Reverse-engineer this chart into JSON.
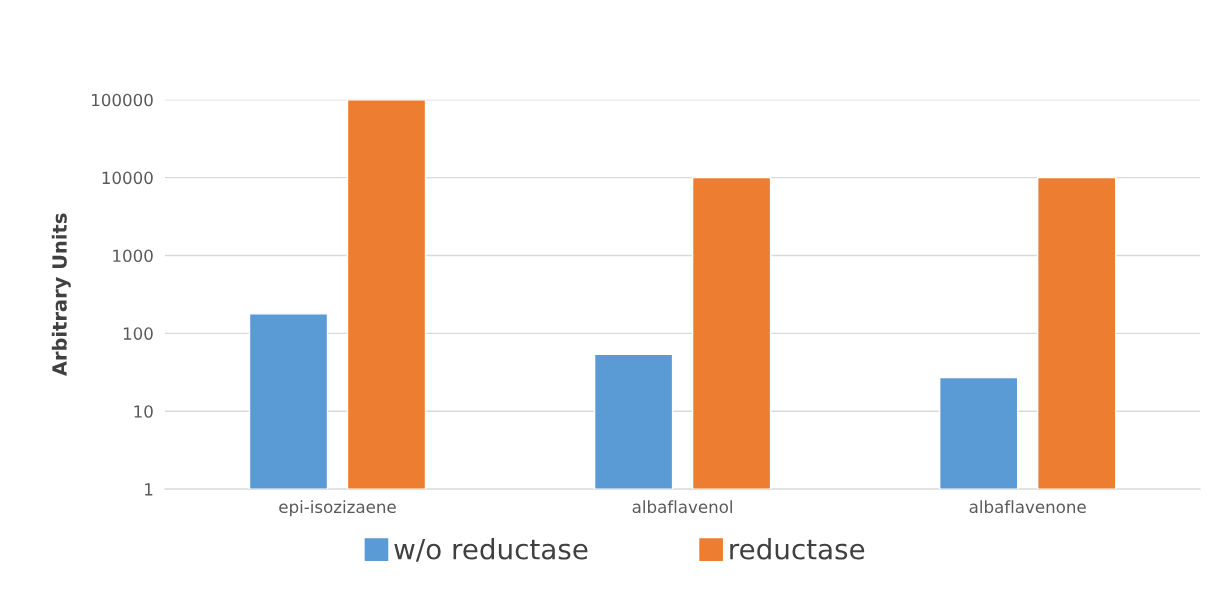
{
  "chart_data": {
    "type": "bar",
    "ylabel": "Arbitrary Units",
    "categories": [
      "epi-isozizaene",
      "albaflavenol",
      "albaflavenone"
    ],
    "series": [
      {
        "name": "w/o reductase",
        "color": "#5b9bd5",
        "values": [
          178,
          54,
          27
        ]
      },
      {
        "name": "reductase",
        "color": "#ed7d31",
        "values": [
          100000,
          10000,
          10000
        ]
      }
    ],
    "log": true,
    "ylim": [
      1,
      100000
    ],
    "yticks": [
      1,
      10,
      100,
      1000,
      10000,
      100000
    ],
    "grid": "y",
    "legend": "bottom"
  }
}
